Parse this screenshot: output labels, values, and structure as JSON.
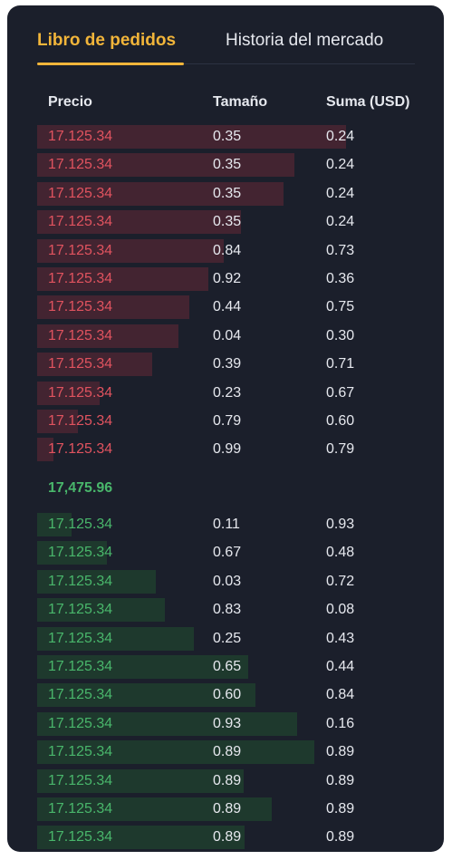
{
  "tabs": {
    "active": "Libro de pedidos",
    "inactive": "Historia del mercado"
  },
  "columns": {
    "price": "Precio",
    "size": "Tamaño",
    "sum": "Suma (USD)"
  },
  "asks": [
    {
      "price": "17.125.34",
      "size": "0.35",
      "sum": "0.24",
      "depth": 0.91
    },
    {
      "price": "17.125.34",
      "size": "0.35",
      "sum": "0.24",
      "depth": 0.758
    },
    {
      "price": "17.125.34",
      "size": "0.35",
      "sum": "0.24",
      "depth": 0.726
    },
    {
      "price": "17.125.34",
      "size": "0.35",
      "sum": "0.24",
      "depth": 0.6
    },
    {
      "price": "17.125.34",
      "size": "0.84",
      "sum": "0.73",
      "depth": 0.549
    },
    {
      "price": "17.125.34",
      "size": "0.92",
      "sum": "0.36",
      "depth": 0.505
    },
    {
      "price": "17.125.34",
      "size": "0.44",
      "sum": "0.75",
      "depth": 0.448
    },
    {
      "price": "17.125.34",
      "size": "0.04",
      "sum": "0.30",
      "depth": 0.416
    },
    {
      "price": "17.125.34",
      "size": "0.39",
      "sum": "0.71",
      "depth": 0.338
    },
    {
      "price": "17.125.34",
      "size": "0.23",
      "sum": "0.67",
      "depth": 0.183
    },
    {
      "price": "17.125.34",
      "size": "0.79",
      "sum": "0.60",
      "depth": 0.12
    },
    {
      "price": "17.125.34",
      "size": "0.99",
      "sum": "0.79",
      "depth": 0.047
    }
  ],
  "mid_price": "17,475.96",
  "bids": [
    {
      "price": "17.125.34",
      "size": "0.11",
      "sum": "0.93",
      "depth": 0.1
    },
    {
      "price": "17.125.34",
      "size": "0.67",
      "sum": "0.48",
      "depth": 0.205
    },
    {
      "price": "17.125.34",
      "size": "0.03",
      "sum": "0.72",
      "depth": 0.35
    },
    {
      "price": "17.125.34",
      "size": "0.83",
      "sum": "0.08",
      "depth": 0.376
    },
    {
      "price": "17.125.34",
      "size": "0.25",
      "sum": "0.43",
      "depth": 0.46
    },
    {
      "price": "17.125.34",
      "size": "0.65",
      "sum": "0.44",
      "depth": 0.62
    },
    {
      "price": "17.125.34",
      "size": "0.60",
      "sum": "0.84",
      "depth": 0.643
    },
    {
      "price": "17.125.34",
      "size": "0.93",
      "sum": "0.16",
      "depth": 0.765
    },
    {
      "price": "17.125.34",
      "size": "0.89",
      "sum": "0.89",
      "depth": 0.815
    },
    {
      "price": "17.125.34",
      "size": "0.89",
      "sum": "0.89",
      "depth": 0.608
    },
    {
      "price": "17.125.34",
      "size": "0.89",
      "sum": "0.89",
      "depth": 0.69
    },
    {
      "price": "17.125.34",
      "size": "0.89",
      "sum": "0.89",
      "depth": 0.61
    }
  ],
  "colors": {
    "ask": "#e0535f",
    "bid": "#49b66b",
    "accent": "#f2b53a",
    "panel": "#1b1f2b"
  }
}
